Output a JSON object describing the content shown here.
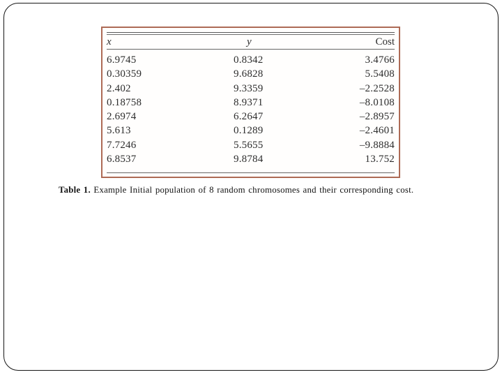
{
  "slide": {
    "background": "#ffffff",
    "border_color": "#161616"
  },
  "figure": {
    "border_color": "#ad6a55",
    "kind": "scanned-table-image"
  },
  "caption": {
    "label": "Table 1.",
    "text": " Example Initial population of 8 random chromosomes and their corresponding cost."
  },
  "table": {
    "headers": {
      "x": "x",
      "y": "y",
      "cost": "Cost"
    },
    "rows": [
      {
        "x": "6.9745",
        "y": "0.8342",
        "cost": "3.4766"
      },
      {
        "x": "0.30359",
        "y": "9.6828",
        "cost": "5.5408"
      },
      {
        "x": "2.402",
        "y": "9.3359",
        "cost": "–2.2528"
      },
      {
        "x": "0.18758",
        "y": "8.9371",
        "cost": "–8.0108"
      },
      {
        "x": "2.6974",
        "y": "6.2647",
        "cost": "–2.8957"
      },
      {
        "x": "5.613",
        "y": "0.1289",
        "cost": "–2.4601"
      },
      {
        "x": "7.7246",
        "y": "5.5655",
        "cost": "–9.8884"
      },
      {
        "x": "6.8537",
        "y": "9.8784",
        "cost": "13.752"
      }
    ]
  }
}
